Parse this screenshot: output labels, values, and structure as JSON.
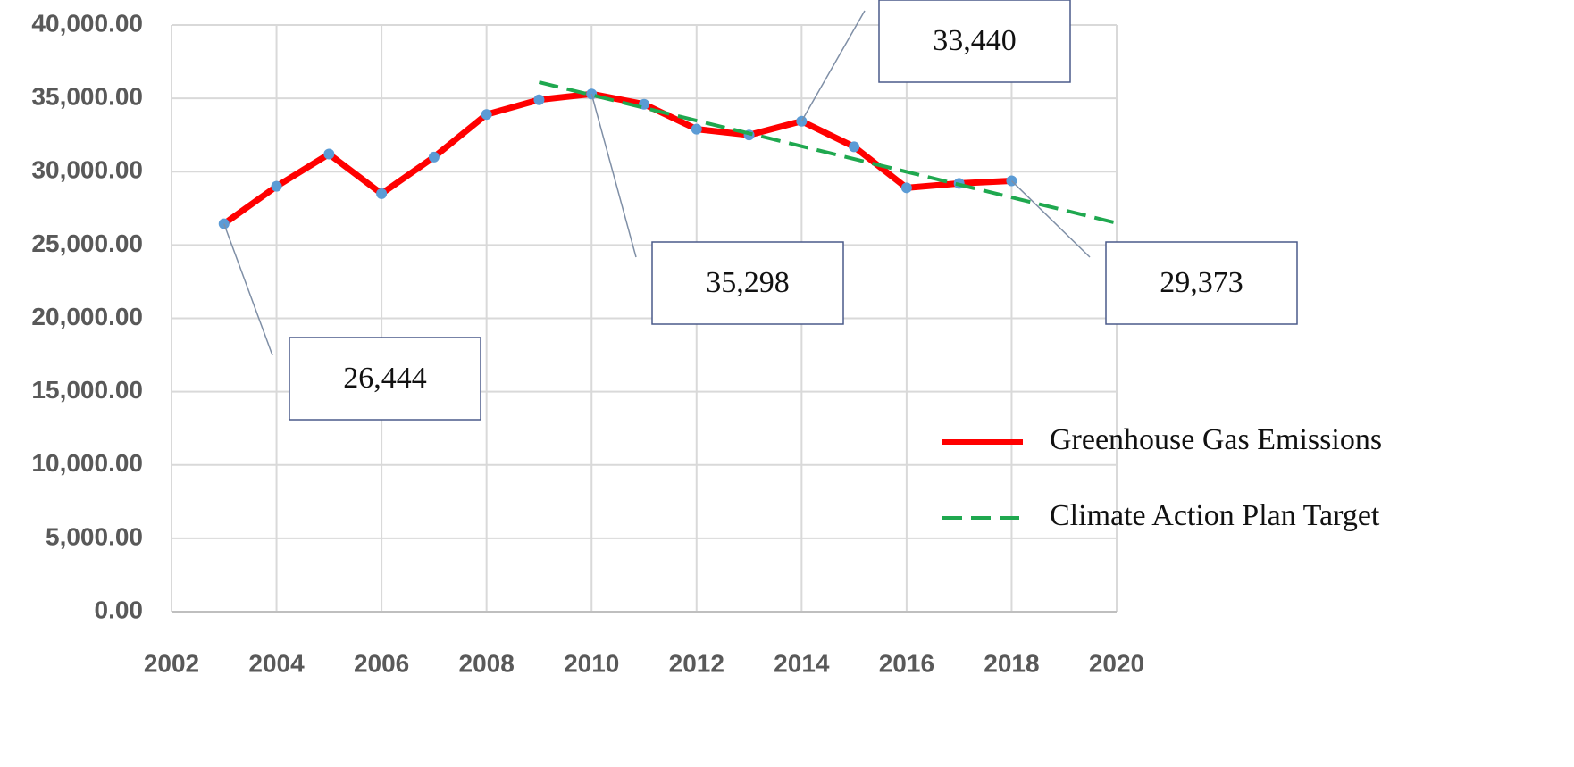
{
  "chart_data": {
    "type": "line",
    "series": [
      {
        "name": "Greenhouse Gas Emissions",
        "color": "#ff0000",
        "marker_color": "#5b9bd5",
        "x": [
          2003,
          2004,
          2005,
          2006,
          2007,
          2008,
          2009,
          2010,
          2011,
          2012,
          2013,
          2014,
          2015,
          2016,
          2017,
          2018
        ],
        "values": [
          26444,
          29000,
          31200,
          28500,
          31000,
          33900,
          34900,
          35298,
          34600,
          32900,
          32500,
          33440,
          31700,
          28900,
          29200,
          29373
        ]
      },
      {
        "name": "Climate Action Plan Target",
        "color": "#1fa84f",
        "dashed": true,
        "x": [
          2009,
          2020
        ],
        "values": [
          36100,
          26500
        ]
      }
    ],
    "annotations": [
      {
        "text": "26,444",
        "x": 2003,
        "value": 26444
      },
      {
        "text": "35,298",
        "x": 2010,
        "value": 35298
      },
      {
        "text": "33,440",
        "x": 2014,
        "value": 33440
      },
      {
        "text": "29,373",
        "x": 2018,
        "value": 29373
      }
    ],
    "xlim": [
      2002,
      2020
    ],
    "xticks": [
      2002,
      2004,
      2006,
      2008,
      2010,
      2012,
      2014,
      2016,
      2018,
      2020
    ],
    "ylim": [
      0,
      40000
    ],
    "yticks": [
      {
        "value": 0,
        "label": "0.00"
      },
      {
        "value": 5000,
        "label": "5,000.00"
      },
      {
        "value": 10000,
        "label": "10,000.00"
      },
      {
        "value": 15000,
        "label": "15,000.00"
      },
      {
        "value": 20000,
        "label": "20,000.00"
      },
      {
        "value": 25000,
        "label": "25,000.00"
      },
      {
        "value": 30000,
        "label": "30,000.00"
      },
      {
        "value": 35000,
        "label": "35,000.00"
      },
      {
        "value": 40000,
        "label": "40,000.00"
      }
    ],
    "grid": true,
    "legend": "lower right"
  }
}
